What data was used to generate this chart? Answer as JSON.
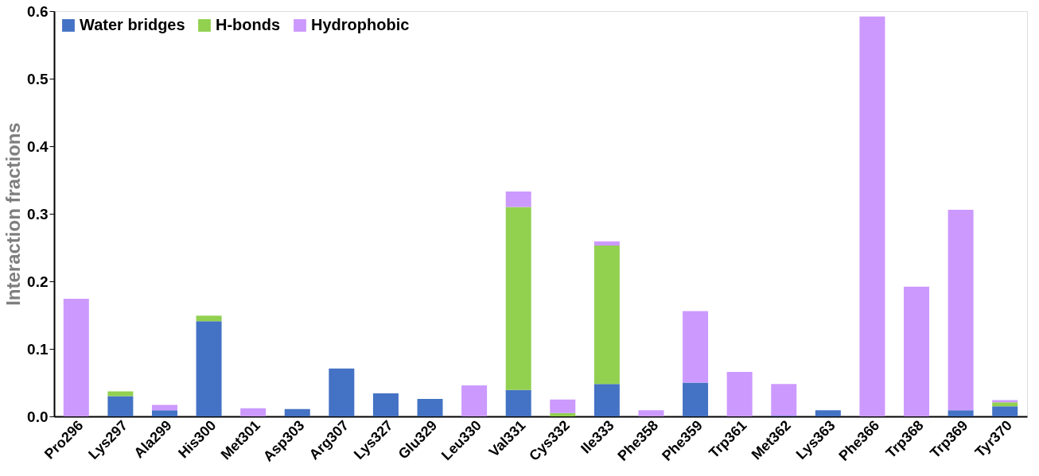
{
  "chart_data": {
    "type": "bar",
    "stacked": true,
    "ylabel": "Interaction fractions",
    "legend": "top left",
    "grid": false,
    "categories": [
      "Pro296",
      "Lys297",
      "Ala299",
      "His300",
      "Met301",
      "Asp303",
      "Arg307",
      "Lys327",
      "Glu329",
      "Leu330",
      "Val331",
      "Cys332",
      "Ile333",
      "Phe358",
      "Phe359",
      "Trp361",
      "Met362",
      "Lys363",
      "Phe366",
      "Trp368",
      "Trp369",
      "Tyr370"
    ],
    "ylim": [
      0,
      0.6
    ],
    "yticks": [
      {
        "value": 0,
        "label": "0.0"
      },
      0.1,
      0.2,
      0.3,
      0.4,
      0.5,
      0.6
    ],
    "series": [
      {
        "name": "Water bridges",
        "color": "#4472c4",
        "values": [
          0,
          0.03,
          0.009,
          0.141,
          0,
          0.011,
          0.071,
          0.034,
          0.026,
          0,
          0.039,
          0,
          0.048,
          0,
          0.05,
          0,
          0.001,
          0.009,
          0,
          0,
          0.009,
          0.015
        ]
      },
      {
        "name": "H-bonds",
        "color": "#92d050",
        "values": [
          0,
          0.007,
          0,
          0.008,
          0,
          0,
          0,
          0,
          0,
          0,
          0.271,
          0.005,
          0.205,
          0,
          0,
          0,
          0,
          0,
          0,
          0,
          0,
          0.006
        ]
      },
      {
        "name": "Hydrophobic",
        "color": "#cc99ff",
        "values": [
          0.174,
          0,
          0.008,
          0,
          0.012,
          0,
          0,
          0,
          0,
          0.046,
          0.023,
          0.02,
          0.006,
          0.009,
          0.106,
          0.066,
          0.047,
          0,
          0.592,
          0.192,
          0.297,
          0.003
        ]
      }
    ]
  }
}
